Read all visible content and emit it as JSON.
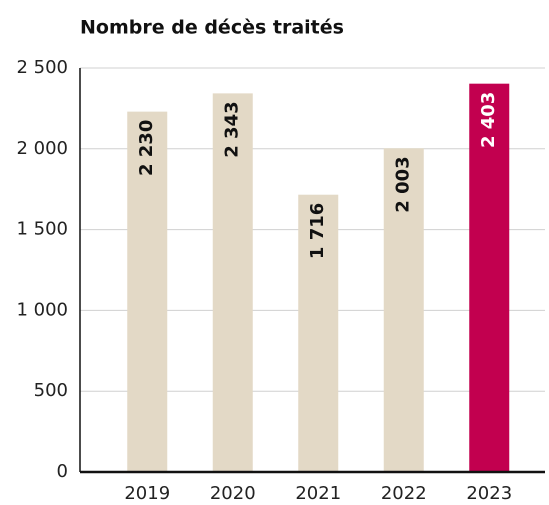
{
  "chart_data": {
    "type": "bar",
    "title": "Nombre de décès traités",
    "categories": [
      "2019",
      "2020",
      "2021",
      "2022",
      "2023"
    ],
    "values": [
      2230,
      2343,
      1716,
      2003,
      2403
    ],
    "value_labels": [
      "2 230",
      "2 343",
      "1 716",
      "2 003",
      "2 403"
    ],
    "colors": [
      "#e3d9c6",
      "#e3d9c6",
      "#e3d9c6",
      "#e3d9c6",
      "#c2004f"
    ],
    "ylim": [
      0,
      2500
    ],
    "yticks": [
      0,
      500,
      {
        "value": 1000,
        "label": "1 000"
      },
      {
        "value": 1500,
        "label": "1 500"
      },
      {
        "value": 2000,
        "label": "2 000"
      },
      {
        "value": 2500,
        "label": "2 500"
      }
    ],
    "grid": true
  }
}
